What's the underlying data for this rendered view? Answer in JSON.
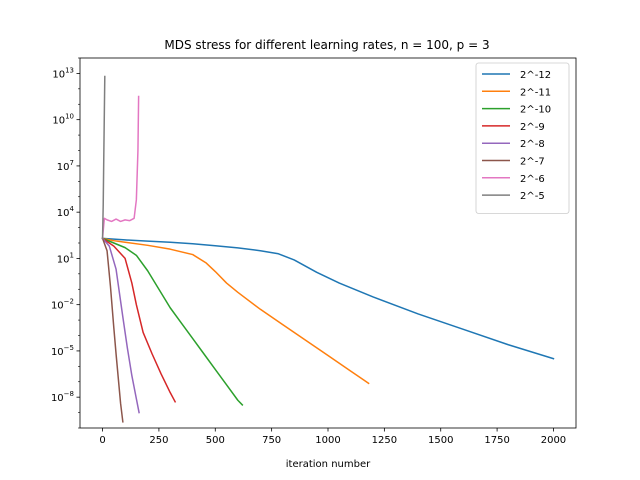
{
  "chart_data": {
    "type": "line",
    "title": "MDS stress for different learning rates, n = 100, p = 3",
    "xlabel": "iteration number",
    "ylabel": "",
    "xlim": [
      -100,
      2100
    ],
    "ylog": true,
    "ylim_exponent": [
      -10,
      14
    ],
    "x_ticks": [
      0,
      250,
      500,
      750,
      1000,
      1250,
      1500,
      1750,
      2000
    ],
    "x_tick_labels": [
      "0",
      "250",
      "500",
      "750",
      "1000",
      "1250",
      "1500",
      "1750",
      "2000"
    ],
    "y_ticks_exponent": [
      -8,
      -5,
      -2,
      1,
      4,
      7,
      10,
      13
    ],
    "y_tick_labels": [
      {
        "base": "10",
        "exp": "−8"
      },
      {
        "base": "10",
        "exp": "−5"
      },
      {
        "base": "10",
        "exp": "−2"
      },
      {
        "base": "10",
        "exp": "1"
      },
      {
        "base": "10",
        "exp": "4"
      },
      {
        "base": "10",
        "exp": "7"
      },
      {
        "base": "10",
        "exp": "10"
      },
      {
        "base": "10",
        "exp": "13"
      }
    ],
    "grid": false,
    "legend_position": "top-right",
    "series": [
      {
        "name": "2^-12",
        "color": "#1f77b4",
        "x": [
          0,
          50,
          100,
          200,
          300,
          400,
          500,
          600,
          700,
          780,
          850,
          950,
          1050,
          1200,
          1400,
          1600,
          1800,
          2000
        ],
        "y": [
          2.3,
          2.25,
          2.2,
          2.12,
          2.05,
          1.95,
          1.82,
          1.68,
          1.5,
          1.3,
          0.9,
          0.1,
          -0.6,
          -1.5,
          -2.6,
          -3.6,
          -4.6,
          -5.5
        ]
      },
      {
        "name": "2^-11",
        "color": "#ff7f0e",
        "x": [
          0,
          50,
          100,
          200,
          300,
          400,
          460,
          500,
          550,
          600,
          700,
          800,
          900,
          1000,
          1100,
          1180
        ],
        "y": [
          2.3,
          2.15,
          2.05,
          1.85,
          1.6,
          1.25,
          0.7,
          0.15,
          -0.6,
          -1.2,
          -2.3,
          -3.3,
          -4.3,
          -5.3,
          -6.3,
          -7.1
        ]
      },
      {
        "name": "2^-10",
        "color": "#2ca02c",
        "x": [
          0,
          50,
          100,
          150,
          200,
          250,
          300,
          350,
          400,
          450,
          500,
          550,
          600,
          620
        ],
        "y": [
          2.3,
          2.0,
          1.7,
          1.2,
          0.2,
          -1.0,
          -2.2,
          -3.2,
          -4.2,
          -5.2,
          -6.2,
          -7.2,
          -8.2,
          -8.5
        ]
      },
      {
        "name": "2^-9",
        "color": "#d62728",
        "x": [
          0,
          50,
          100,
          130,
          150,
          180,
          220,
          260,
          300,
          322
        ],
        "y": [
          2.3,
          1.8,
          1.0,
          -0.6,
          -2.0,
          -3.8,
          -5.2,
          -6.5,
          -7.7,
          -8.3
        ]
      },
      {
        "name": "2^-8",
        "color": "#9467bd",
        "x": [
          0,
          30,
          60,
          90,
          110,
          130,
          150,
          162
        ],
        "y": [
          2.3,
          1.8,
          0.3,
          -2.8,
          -4.8,
          -6.6,
          -8.1,
          -9.0
        ]
      },
      {
        "name": "2^-7",
        "color": "#8c564b",
        "x": [
          0,
          20,
          35,
          50,
          60,
          70,
          80,
          90
        ],
        "y": [
          2.3,
          1.5,
          -0.8,
          -3.5,
          -5.2,
          -6.8,
          -8.4,
          -9.6
        ]
      },
      {
        "name": "2^-6",
        "color": "#e377c2",
        "x": [
          0,
          8,
          20,
          40,
          60,
          80,
          100,
          120,
          140,
          150,
          157,
          160
        ],
        "y": [
          2.3,
          3.6,
          3.5,
          3.4,
          3.55,
          3.4,
          3.5,
          3.45,
          3.6,
          4.8,
          8.0,
          11.5
        ]
      },
      {
        "name": "2^-5",
        "color": "#7f7f7f",
        "x": [
          0,
          3,
          5,
          8,
          10
        ],
        "y": [
          2.3,
          4.5,
          7.0,
          10.5,
          12.8
        ]
      }
    ]
  }
}
